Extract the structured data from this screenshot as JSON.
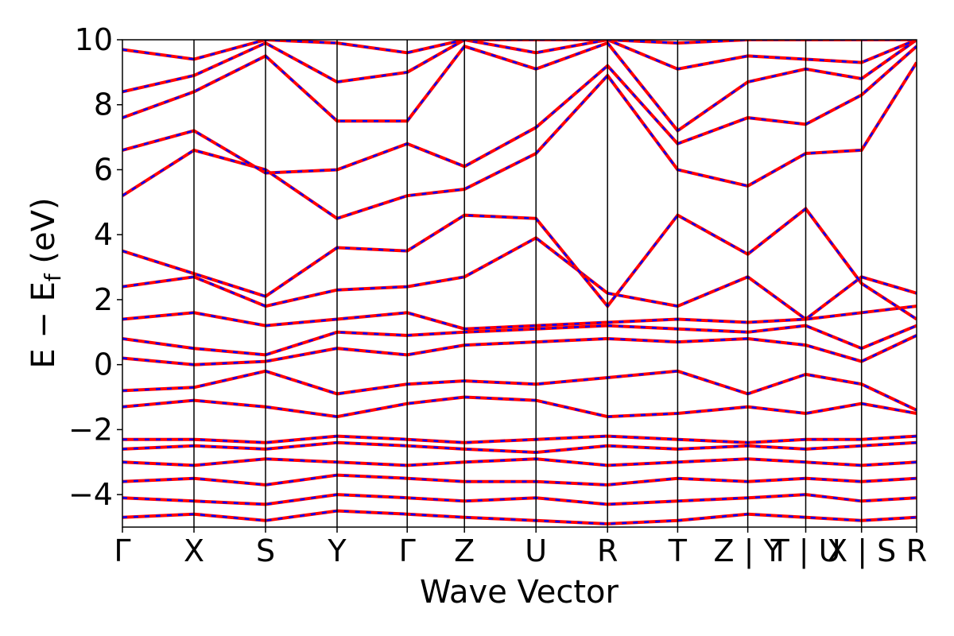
{
  "chart_data": {
    "type": "line",
    "title": "",
    "xlabel": "Wave Vector",
    "ylabel": "E − E",
    "ylabel_sub": "f",
    "ylabel_unit": " (eV)",
    "ylim": [
      -5,
      10
    ],
    "yticks": [
      -4,
      -2,
      0,
      2,
      4,
      6,
      8,
      10
    ],
    "ytick_labels": [
      "−4",
      "−2",
      "0",
      "2",
      "4",
      "6",
      "8",
      "10"
    ],
    "xlim": [
      0,
      11.1
    ],
    "kpoint_positions": [
      0,
      1.0,
      2.0,
      3.0,
      3.98,
      4.78,
      5.78,
      6.78,
      7.76,
      8.74,
      9.55,
      10.33,
      11.1
    ],
    "kpoint_labels": [
      "Γ",
      "X",
      "S",
      "Y",
      "Γ",
      "Z",
      "U",
      "R",
      "T",
      "Z | Y",
      "T | U",
      "X | S",
      "R"
    ],
    "band_colors": {
      "solid": "#ff0000",
      "dashed": "#0000ff"
    },
    "grid": false,
    "legend": "none",
    "bands": [
      {
        "name": "",
        "x": [
          0,
          1,
          2,
          3,
          3.98,
          4.78,
          5.78,
          6.78,
          7.76,
          8.74,
          9.55,
          10.33,
          11.1
        ],
        "y": [
          -4.7,
          -4.6,
          -4.8,
          -4.5,
          -4.6,
          -4.7,
          -4.8,
          -4.9,
          -4.8,
          -4.6,
          -4.7,
          -4.8,
          -4.7
        ]
      },
      {
        "name": "",
        "x": [
          0,
          1,
          2,
          3,
          3.98,
          4.78,
          5.78,
          6.78,
          7.76,
          8.74,
          9.55,
          10.33,
          11.1
        ],
        "y": [
          -4.1,
          -4.2,
          -4.3,
          -4.0,
          -4.1,
          -4.2,
          -4.1,
          -4.3,
          -4.2,
          -4.1,
          -4.0,
          -4.2,
          -4.1
        ]
      },
      {
        "name": "",
        "x": [
          0,
          1,
          2,
          3,
          3.98,
          4.78,
          5.78,
          6.78,
          7.76,
          8.74,
          9.55,
          10.33,
          11.1
        ],
        "y": [
          -3.6,
          -3.5,
          -3.7,
          -3.4,
          -3.5,
          -3.6,
          -3.6,
          -3.7,
          -3.5,
          -3.6,
          -3.5,
          -3.6,
          -3.5
        ]
      },
      {
        "name": "",
        "x": [
          0,
          1,
          2,
          3,
          3.98,
          4.78,
          5.78,
          6.78,
          7.76,
          8.74,
          9.55,
          10.33,
          11.1
        ],
        "y": [
          -3.0,
          -3.1,
          -2.9,
          -3.0,
          -3.1,
          -3.0,
          -2.9,
          -3.1,
          -3.0,
          -2.9,
          -3.0,
          -3.1,
          -3.0
        ]
      },
      {
        "name": "",
        "x": [
          0,
          1,
          2,
          3,
          3.98,
          4.78,
          5.78,
          6.78,
          7.76,
          8.74,
          9.55,
          10.33,
          11.1
        ],
        "y": [
          -2.6,
          -2.5,
          -2.6,
          -2.4,
          -2.5,
          -2.6,
          -2.7,
          -2.5,
          -2.6,
          -2.5,
          -2.6,
          -2.5,
          -2.4
        ]
      },
      {
        "name": "",
        "x": [
          0,
          1,
          2,
          3,
          3.98,
          4.78,
          5.78,
          6.78,
          7.76,
          8.74,
          9.55,
          10.33,
          11.1
        ],
        "y": [
          -2.3,
          -2.3,
          -2.4,
          -2.2,
          -2.3,
          -2.4,
          -2.3,
          -2.2,
          -2.3,
          -2.4,
          -2.3,
          -2.3,
          -2.2
        ]
      },
      {
        "name": "",
        "x": [
          0,
          1,
          2,
          3,
          3.98,
          4.78,
          5.78,
          6.78,
          7.76,
          8.74,
          9.55,
          10.33,
          11.1
        ],
        "y": [
          -1.3,
          -1.1,
          -1.3,
          -1.6,
          -1.2,
          -1.0,
          -1.1,
          -1.6,
          -1.5,
          -1.3,
          -1.5,
          -1.2,
          -1.5
        ]
      },
      {
        "name": "",
        "x": [
          0,
          1,
          2,
          3,
          3.98,
          4.78,
          5.78,
          6.78,
          7.76,
          8.74,
          9.55,
          10.33,
          11.1
        ],
        "y": [
          -0.8,
          -0.7,
          -0.2,
          -0.9,
          -0.6,
          -0.5,
          -0.6,
          -0.4,
          -0.2,
          -0.9,
          -0.3,
          -0.6,
          -1.4
        ]
      },
      {
        "name": "",
        "x": [
          0,
          1,
          2,
          3,
          3.98,
          4.78,
          5.78,
          6.78,
          7.76,
          8.74,
          9.55,
          10.33,
          11.1
        ],
        "y": [
          0.2,
          0.0,
          0.1,
          0.5,
          0.3,
          0.6,
          0.7,
          0.8,
          0.7,
          0.8,
          0.6,
          0.1,
          0.9
        ]
      },
      {
        "name": "",
        "x": [
          0,
          1,
          2,
          3,
          3.98,
          4.78,
          5.78,
          6.78,
          7.76,
          8.74,
          9.55,
          10.33,
          11.1
        ],
        "y": [
          0.8,
          0.5,
          0.3,
          1.0,
          0.9,
          1.0,
          1.1,
          1.2,
          1.1,
          1.0,
          1.2,
          0.5,
          1.2
        ]
      },
      {
        "name": "",
        "x": [
          0,
          1,
          2,
          3,
          3.98,
          4.78,
          5.78,
          6.78,
          7.76,
          8.74,
          9.55,
          10.33,
          11.1
        ],
        "y": [
          1.4,
          1.6,
          1.2,
          1.4,
          1.6,
          1.1,
          1.2,
          1.3,
          1.4,
          1.3,
          1.4,
          1.6,
          1.8
        ]
      },
      {
        "name": "",
        "x": [
          0,
          1,
          2,
          3,
          3.98,
          4.78,
          5.78,
          6.78,
          7.76,
          8.74,
          9.55,
          10.33,
          11.1
        ],
        "y": [
          2.4,
          2.7,
          1.8,
          2.3,
          2.4,
          2.7,
          3.9,
          2.2,
          1.8,
          2.7,
          1.4,
          2.7,
          2.2
        ]
      },
      {
        "name": "",
        "x": [
          0,
          1,
          2,
          3,
          3.98,
          4.78,
          5.78,
          6.78,
          7.76,
          8.74,
          9.55,
          10.33,
          11.1
        ],
        "y": [
          3.5,
          2.8,
          2.1,
          3.6,
          3.5,
          4.6,
          4.5,
          1.8,
          4.6,
          3.4,
          4.8,
          2.5,
          1.4
        ]
      },
      {
        "name": "",
        "x": [
          0,
          1,
          2,
          3,
          3.98,
          4.78,
          5.78,
          6.78,
          7.76,
          8.74,
          9.55,
          10.33,
          11.1
        ],
        "y": [
          5.2,
          6.6,
          6.0,
          4.5,
          5.2,
          5.4,
          6.5,
          8.9,
          6.0,
          5.5,
          6.5,
          6.6,
          9.3
        ]
      },
      {
        "name": "",
        "x": [
          0,
          1,
          2,
          3,
          3.98,
          4.78,
          5.78,
          6.78,
          7.76,
          8.74,
          9.55,
          10.33,
          11.1
        ],
        "y": [
          6.6,
          7.2,
          5.9,
          6.0,
          6.8,
          6.1,
          7.3,
          9.2,
          6.8,
          7.6,
          7.4,
          8.3,
          9.8
        ]
      },
      {
        "name": "",
        "x": [
          0,
          1,
          2,
          3,
          3.98,
          4.78,
          5.78,
          6.78,
          7.76,
          8.74,
          9.55,
          10.33,
          11.1
        ],
        "y": [
          7.6,
          8.4,
          9.5,
          7.5,
          7.5,
          9.8,
          9.1,
          9.9,
          7.2,
          8.7,
          9.1,
          8.8,
          10.0
        ]
      },
      {
        "name": "",
        "x": [
          0,
          1,
          2,
          3,
          3.98,
          4.78,
          5.78,
          6.78,
          7.76,
          8.74,
          9.55,
          10.33,
          11.1
        ],
        "y": [
          8.4,
          8.9,
          9.9,
          8.7,
          9.0,
          10.0,
          9.6,
          10.0,
          9.1,
          9.5,
          9.4,
          9.3,
          10.0
        ]
      },
      {
        "name": "",
        "x": [
          0,
          1,
          2,
          3,
          3.98,
          4.78,
          5.78,
          6.78,
          7.76,
          8.74,
          9.55,
          10.33,
          11.1
        ],
        "y": [
          9.7,
          9.4,
          10.0,
          9.9,
          9.6,
          10.0,
          10.0,
          10.0,
          9.9,
          10.0,
          10.0,
          10.0,
          10.0
        ]
      }
    ]
  }
}
